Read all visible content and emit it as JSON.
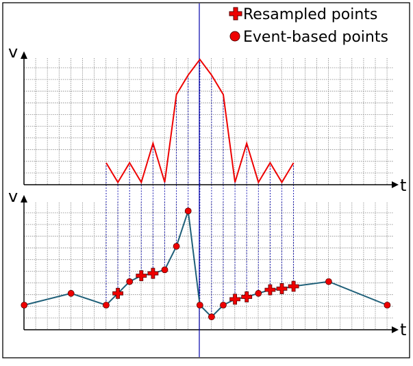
{
  "legend": {
    "resampled_label": "Resampled points",
    "event_label": "Event-based points"
  },
  "axes": {
    "top_y_label": "v",
    "top_x_label": "t",
    "bottom_y_label": "v",
    "bottom_x_label": "t"
  },
  "colors": {
    "grid": "#808080",
    "guide": "#0000aa",
    "top_curve": "#ee0000",
    "bottom_curve": "#1e5f78",
    "marker_fill": "#ee0000",
    "marker_stroke": "#550000"
  },
  "chart_data": [
    {
      "type": "line",
      "name": "resampled-signal-view",
      "grid": true,
      "x": [
        0,
        1,
        2,
        3,
        4,
        5,
        6,
        7,
        8,
        9,
        10,
        11,
        12,
        13,
        14,
        15,
        16
      ],
      "y": [
        0,
        -1,
        0,
        -1,
        1,
        -1,
        3.5,
        4.5,
        5.3,
        4.5,
        3.5,
        -1,
        1,
        -1,
        0,
        -1,
        0
      ]
    },
    {
      "type": "line",
      "name": "event-signal-view",
      "grid": true,
      "x": [
        -7,
        -3,
        0,
        1,
        2,
        3,
        4,
        5,
        6,
        7,
        8,
        9,
        10,
        11,
        12,
        13,
        14,
        15,
        16,
        19,
        24
      ],
      "y": [
        0,
        1,
        0,
        1,
        2,
        2.5,
        2.7,
        3,
        5,
        8,
        0,
        -1,
        0,
        0.5,
        0.7,
        1,
        1.3,
        1.4,
        1.6,
        2,
        0
      ],
      "resampled_x": [
        1,
        3,
        4,
        11,
        12,
        14,
        15,
        16
      ],
      "event_x": [
        -7,
        -3,
        0,
        2,
        5,
        6,
        7,
        8,
        9,
        10,
        13,
        19,
        24
      ]
    }
  ]
}
